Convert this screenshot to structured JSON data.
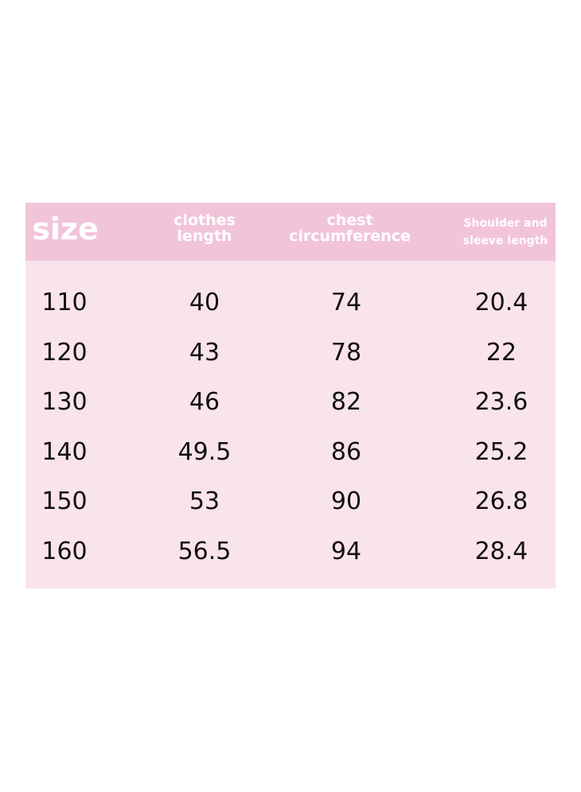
{
  "colors": {
    "header_bg": "#f2c4da",
    "body_bg": "#f9e3ec",
    "header_text": "#ffffff",
    "cell_text": "#111111"
  },
  "headers": [
    {
      "lines": [
        "size"
      ]
    },
    {
      "lines": [
        "clothes",
        "length"
      ]
    },
    {
      "lines": [
        "chest",
        "circumference"
      ]
    },
    {
      "lines": [
        "Shoulder and",
        "sleeve length"
      ]
    }
  ],
  "rows": [
    [
      "110",
      "40",
      "74",
      "20.4"
    ],
    [
      "120",
      "43",
      "78",
      "22"
    ],
    [
      "130",
      "46",
      "82",
      "23.6"
    ],
    [
      "140",
      "49.5",
      "86",
      "25.2"
    ],
    [
      "150",
      "53",
      "90",
      "26.8"
    ],
    [
      "160",
      "56.5",
      "94",
      "28.4"
    ]
  ]
}
